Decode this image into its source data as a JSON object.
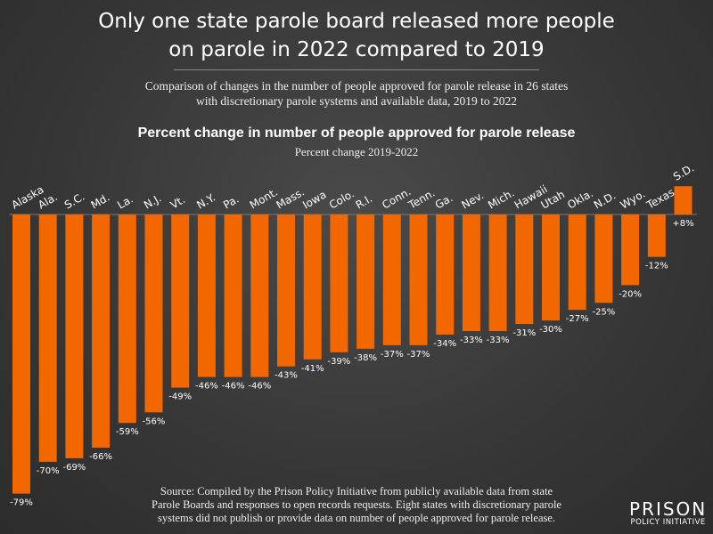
{
  "title_lines": [
    "Only one state parole board released more people",
    "on parole in 2022 compared to 2019"
  ],
  "subtitle_lines": [
    "Comparison of changes in the number of people approved for parole release in 26 states",
    "with discretionary parole systems and available data, 2019 to 2022"
  ],
  "source_lines": [
    "Source: Compiled by the Prison Policy Initiative from publicly available data from state",
    "Parole Boards and responses to open records requests. Eight states with discretionary parole",
    "systems did not publish or provide data on number of people approved for parole release."
  ],
  "logo": {
    "line1": "PRISON",
    "line2": "POLICY INITIATIVE"
  },
  "colors": {
    "bar": "#f26700",
    "background": "#3a3a3a"
  },
  "chart_data": {
    "type": "bar",
    "title": "Percent change in number of people approved for parole release",
    "subtitle": "Percent change 2019-2022",
    "categories": [
      "Alaska",
      "Ala.",
      "S.C.",
      "Md.",
      "La.",
      "N.J.",
      "Vt.",
      "N.Y.",
      "Pa.",
      "Mont.",
      "Mass.",
      "Iowa",
      "Colo.",
      "R.I.",
      "Conn.",
      "Tenn.",
      "Ga.",
      "Nev.",
      "Mich.",
      "Hawaii",
      "Utah",
      "Okla.",
      "N.D.",
      "Wyo.",
      "Texas",
      "S.D."
    ],
    "values": [
      -79,
      -70,
      -69,
      -66,
      -59,
      -56,
      -49,
      -46,
      -46,
      -46,
      -43,
      -41,
      -39,
      -38,
      -37,
      -37,
      -34,
      -33,
      -33,
      -31,
      -30,
      -27,
      -25,
      -20,
      -12,
      8
    ],
    "data_labels": [
      "-79%",
      "-70%",
      "-69%",
      "-66%",
      "-59%",
      "-56%",
      "-49%",
      "-46%",
      "-46%",
      "-46%",
      "-43%",
      "-41%",
      "-39%",
      "-38%",
      "-37%",
      "-37%",
      "-34%",
      "-33%",
      "-33%",
      "-31%",
      "-30%",
      "-27%",
      "-25%",
      "-20%",
      "-12%",
      "+8%"
    ],
    "unit": "%",
    "grid": false,
    "legend": "none"
  }
}
